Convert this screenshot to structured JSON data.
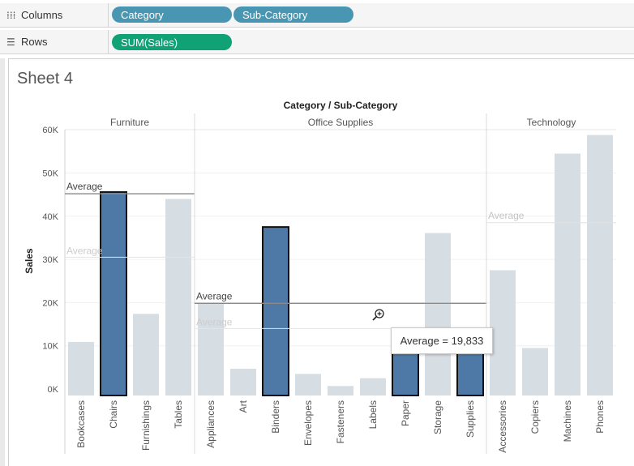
{
  "shelves": {
    "columns": {
      "label": "Columns",
      "icon": "columns-icon",
      "pills": [
        "Category",
        "Sub-Category"
      ]
    },
    "rows": {
      "label": "Rows",
      "icon": "rows-icon",
      "pills": [
        "SUM(Sales)"
      ]
    }
  },
  "sheet": {
    "title": "Sheet 4"
  },
  "tooltip": {
    "text": "Average = 19,833"
  },
  "colors": {
    "selected": "#4e79a7",
    "unselected": "#d6dee4",
    "dimension_pill": "#4996b2",
    "measure_pill": "#10a275"
  },
  "chart_data": {
    "type": "bar",
    "title": "Category / Sub-Category",
    "ylabel": "Sales",
    "ylim": [
      0,
      60000
    ],
    "yticks": [
      0,
      10000,
      20000,
      30000,
      40000,
      50000,
      60000
    ],
    "ytick_labels": [
      "0K",
      "10K",
      "20K",
      "30K",
      "40K",
      "50K",
      "60K"
    ],
    "grid": true,
    "groups": [
      {
        "name": "Furniture",
        "average_label": "Average",
        "average": 45200,
        "average_highlighted": true,
        "categories": [
          "Bookcases",
          "Chairs",
          "Furnishings",
          "Tables"
        ],
        "values": [
          10900,
          45600,
          17400,
          44000
        ],
        "selected": [
          false,
          true,
          false,
          false
        ]
      },
      {
        "name": "Office Supplies",
        "average_label": "Average",
        "average": 19833,
        "average_highlighted": true,
        "categories": [
          "Appliances",
          "Art",
          "Binders",
          "Envelopes",
          "Fasteners",
          "Labels",
          "Paper",
          "Storage",
          "Supplies"
        ],
        "values": [
          20000,
          4700,
          37500,
          3500,
          700,
          2500,
          12000,
          36100,
          8700
        ],
        "selected": [
          false,
          false,
          true,
          false,
          false,
          false,
          true,
          false,
          true
        ]
      },
      {
        "name": "Technology",
        "average_label": "Average",
        "average": 38500,
        "average_highlighted": false,
        "categories": [
          "Accessories",
          "Copiers",
          "Machines",
          "Phones"
        ],
        "values": [
          27500,
          9500,
          54500,
          58800
        ],
        "selected": [
          false,
          false,
          false,
          false
        ]
      }
    ],
    "secondary_average": {
      "label": "Average",
      "groups": [
        "Furniture",
        "Office Supplies"
      ],
      "values": [
        30500,
        14000
      ]
    }
  }
}
